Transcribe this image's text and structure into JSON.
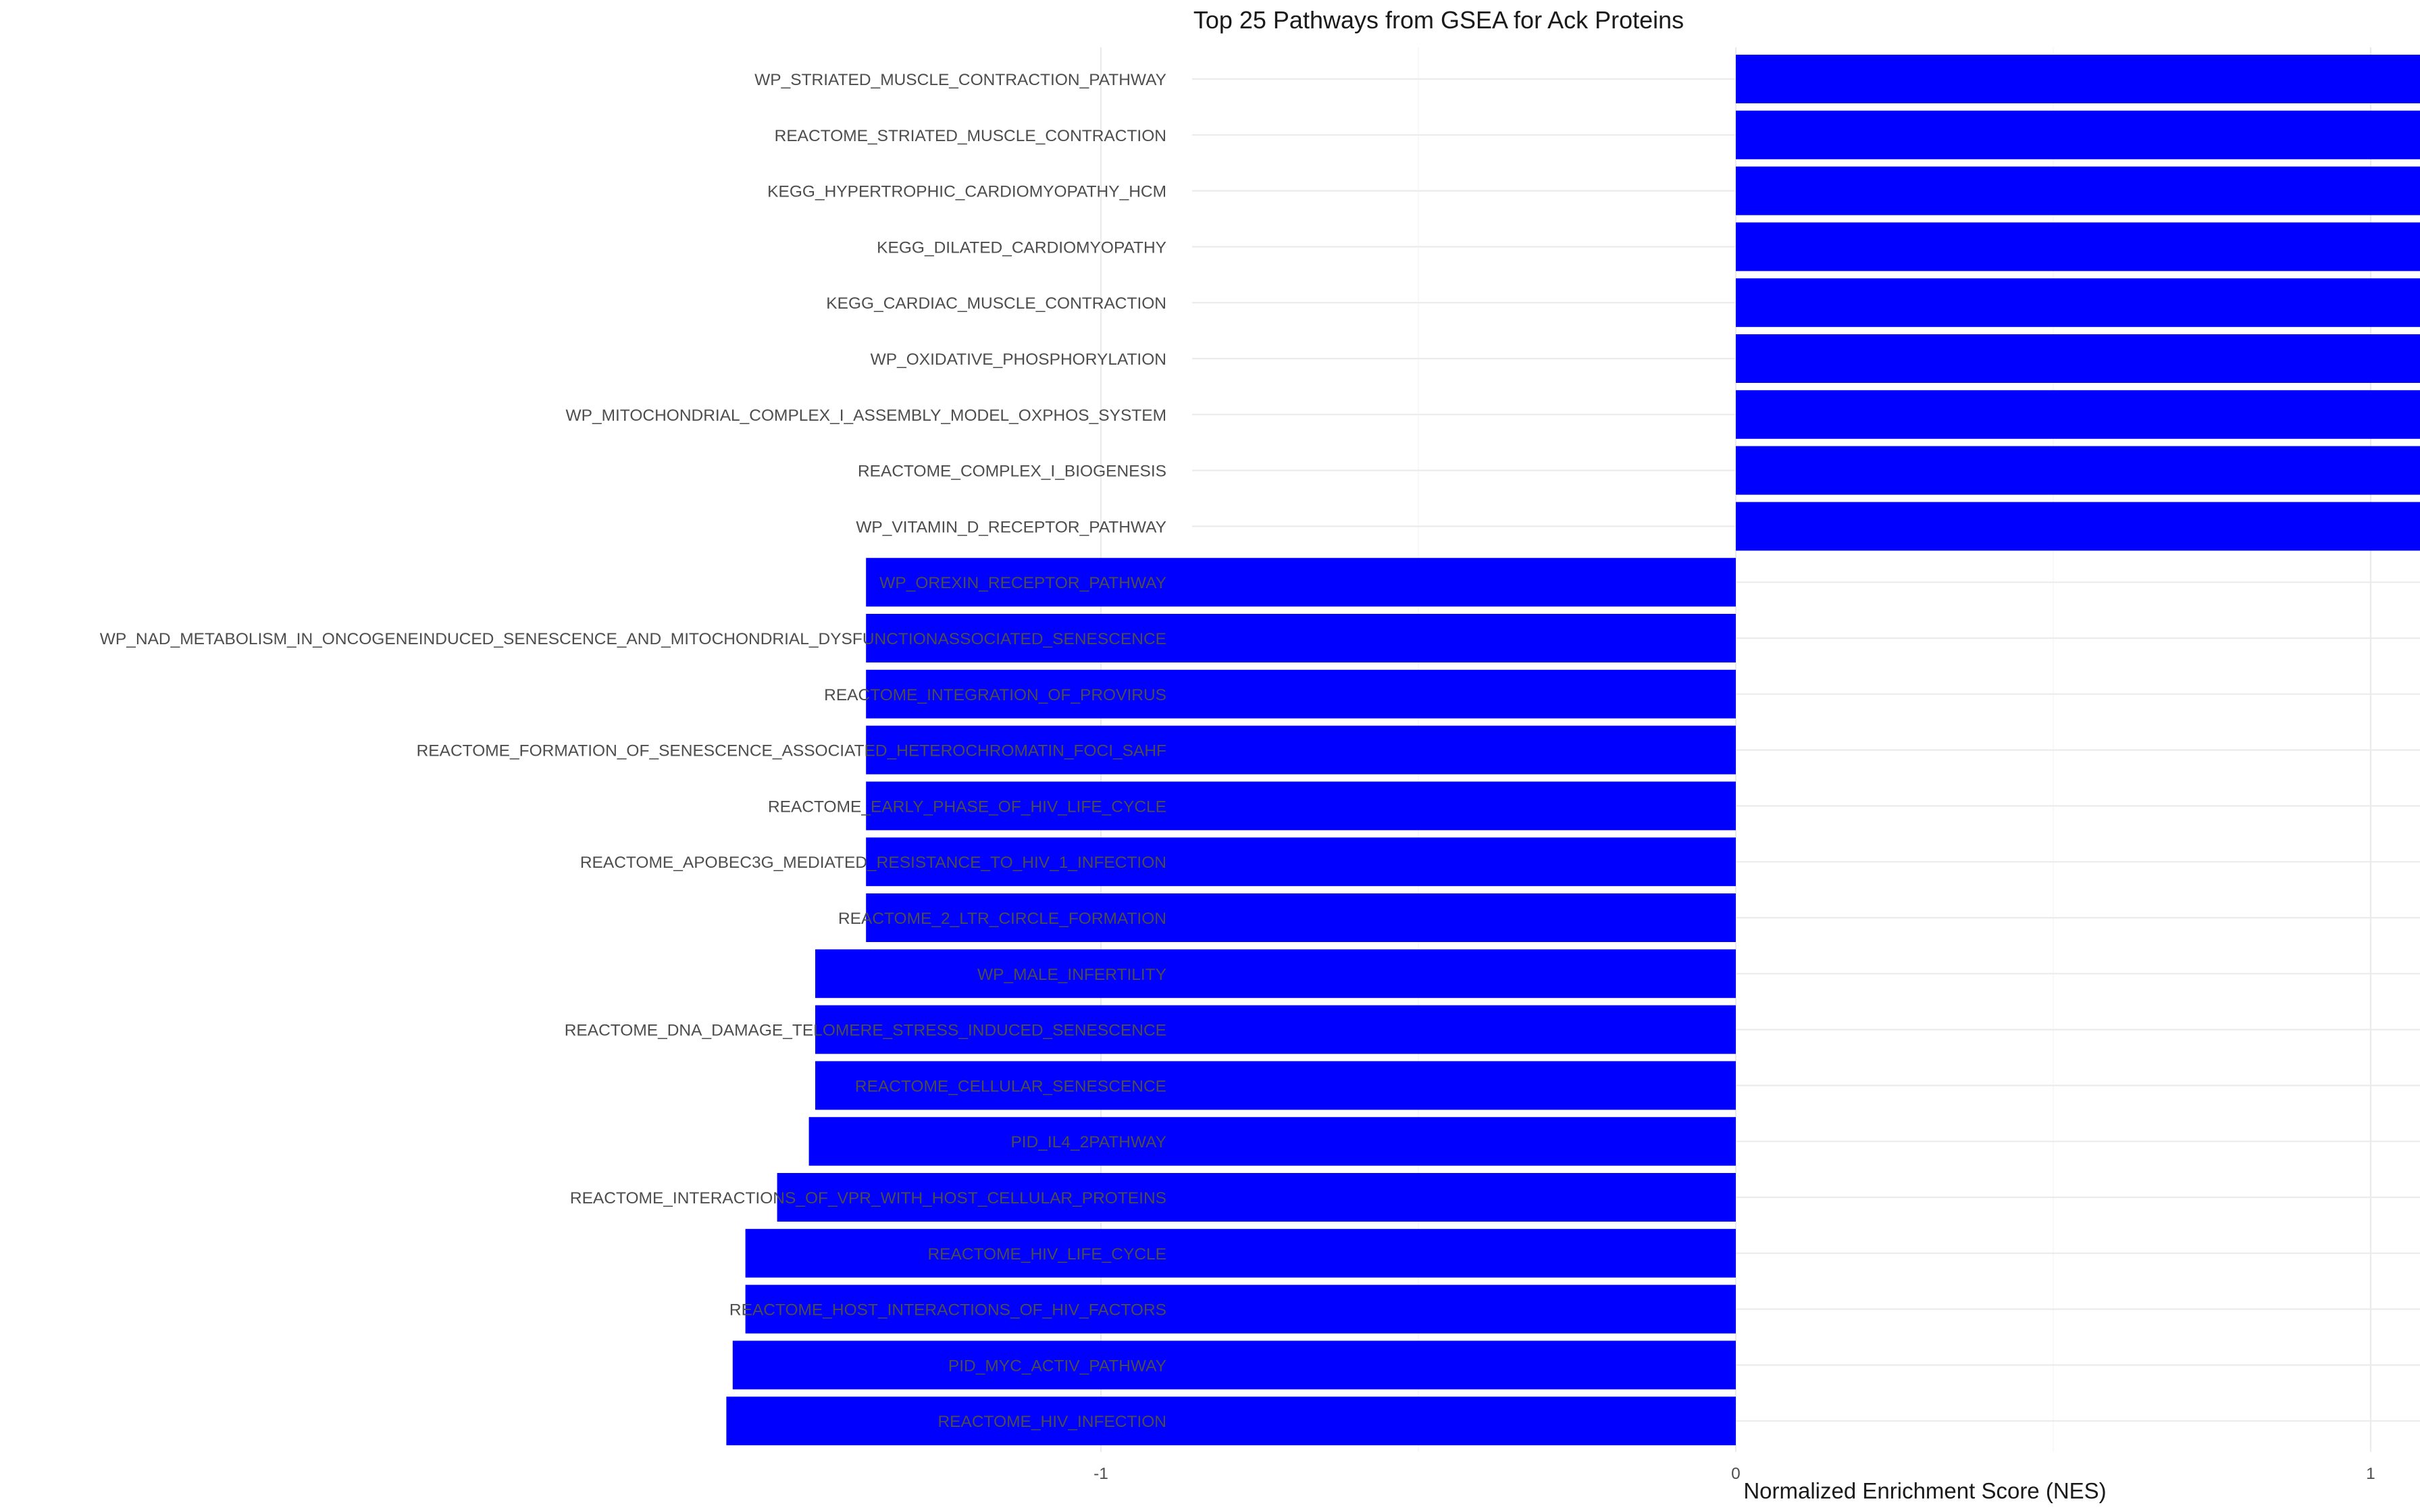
{
  "chart_data": {
    "type": "bar",
    "orientation": "horizontal",
    "title": "Top 25 Pathways from GSEA for Ack Proteins",
    "xlabel": "Normalized Enrichment Score (NES)",
    "ylabel": "",
    "xlim": [
      -1.6,
      2.0
    ],
    "xticks": [
      -1,
      0,
      1,
      2
    ],
    "grid": true,
    "legend": "none",
    "bar_color": "#0000FF",
    "categories": [
      "WP_STRIATED_MUSCLE_CONTRACTION_PATHWAY",
      "REACTOME_STRIATED_MUSCLE_CONTRACTION",
      "KEGG_HYPERTROPHIC_CARDIOMYOPATHY_HCM",
      "KEGG_DILATED_CARDIOMYOPATHY",
      "KEGG_CARDIAC_MUSCLE_CONTRACTION",
      "WP_OXIDATIVE_PHOSPHORYLATION",
      "WP_MITOCHONDRIAL_COMPLEX_I_ASSEMBLY_MODEL_OXPHOS_SYSTEM",
      "REACTOME_COMPLEX_I_BIOGENESIS",
      "WP_VITAMIN_D_RECEPTOR_PATHWAY",
      "WP_OREXIN_RECEPTOR_PATHWAY",
      "WP_NAD_METABOLISM_IN_ONCOGENEINDUCED_SENESCENCE_AND_MITOCHONDRIAL_DYSFUNCTIONASSOCIATED_SENESCENCE",
      "REACTOME_INTEGRATION_OF_PROVIRUS",
      "REACTOME_FORMATION_OF_SENESCENCE_ASSOCIATED_HETEROCHROMATIN_FOCI_SAHF",
      "REACTOME_EARLY_PHASE_OF_HIV_LIFE_CYCLE",
      "REACTOME_APOBEC3G_MEDIATED_RESISTANCE_TO_HIV_1_INFECTION",
      "REACTOME_2_LTR_CIRCLE_FORMATION",
      "WP_MALE_INFERTILITY",
      "REACTOME_DNA_DAMAGE_TELOMERE_STRESS_INDUCED_SENESCENCE",
      "REACTOME_CELLULAR_SENESCENCE",
      "PID_IL4_2PATHWAY",
      "REACTOME_INTERACTIONS_OF_VPR_WITH_HOST_CELLULAR_PROTEINS",
      "REACTOME_HIV_LIFE_CYCLE",
      "REACTOME_HOST_INTERACTIONS_OF_HIV_FACTORS",
      "PID_MYC_ACTIV_PATHWAY",
      "REACTOME_HIV_INFECTION"
    ],
    "values": [
      1.97,
      1.97,
      1.88,
      1.88,
      1.83,
      1.76,
      1.76,
      1.76,
      1.71,
      -1.37,
      -1.37,
      -1.37,
      -1.37,
      -1.37,
      -1.37,
      -1.37,
      -1.45,
      -1.45,
      -1.45,
      -1.46,
      -1.51,
      -1.56,
      -1.56,
      -1.58,
      -1.59
    ]
  }
}
